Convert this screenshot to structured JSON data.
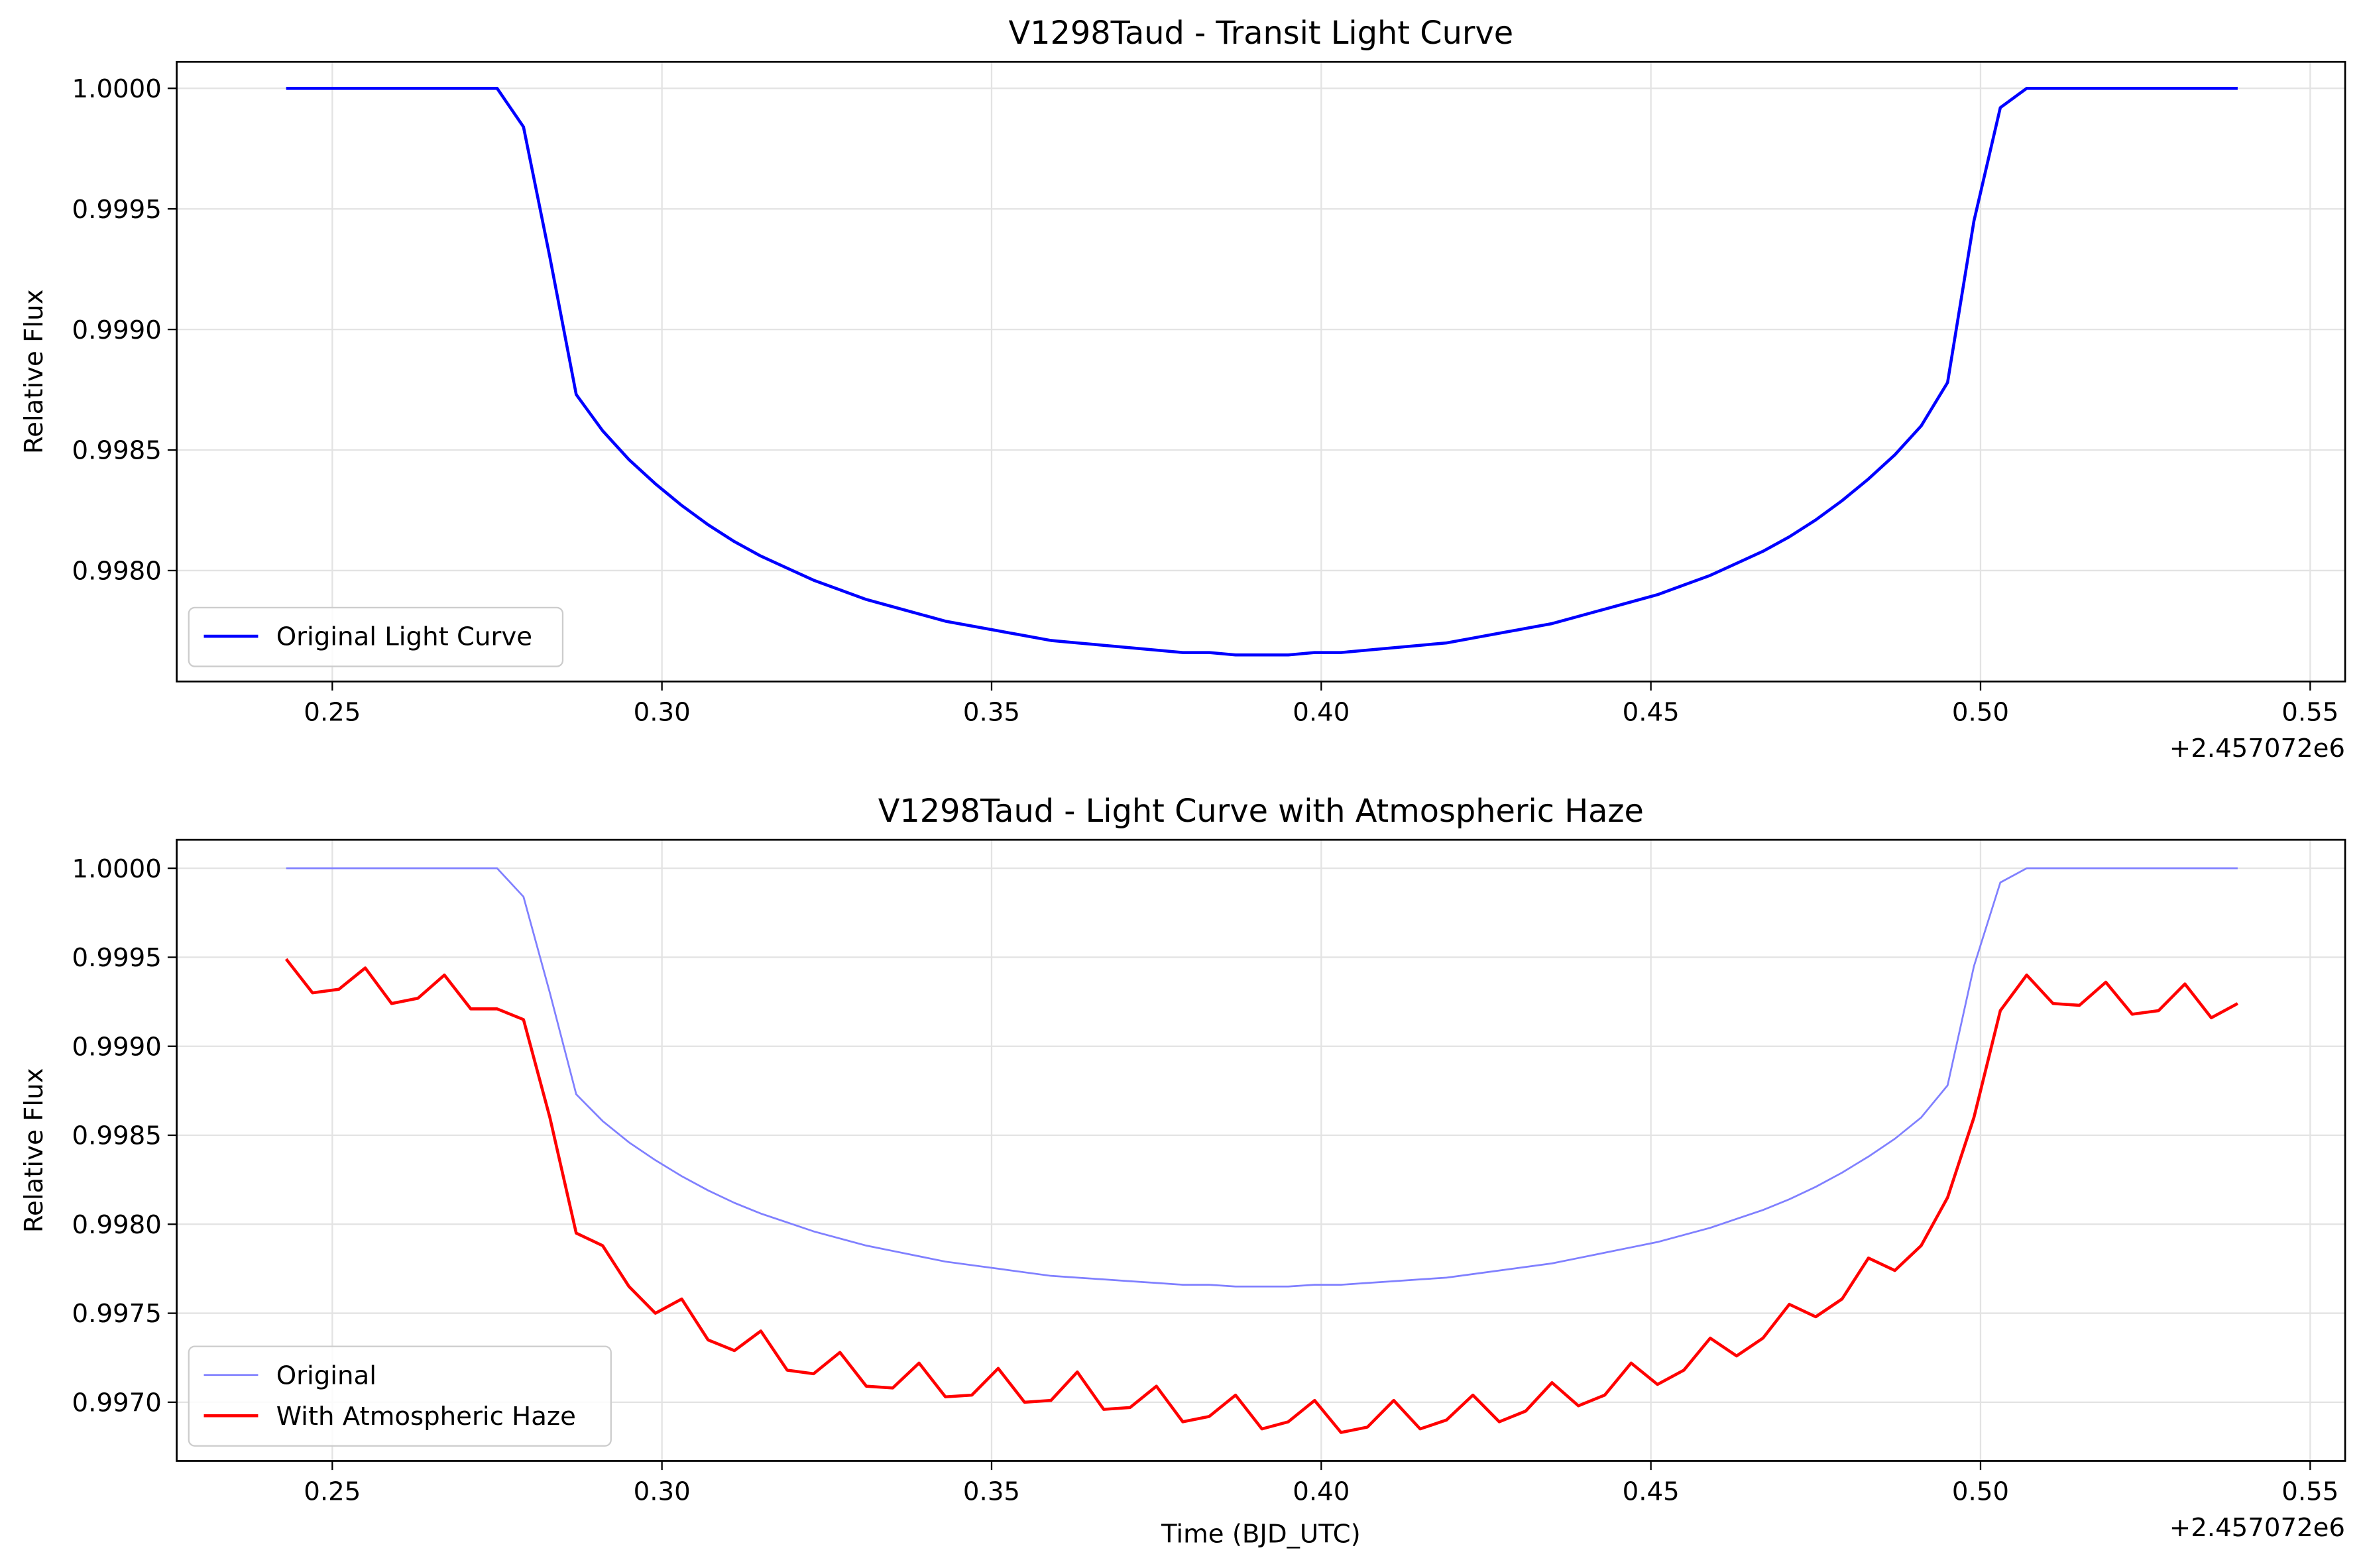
{
  "chart_data": [
    {
      "type": "line",
      "title": "V1298Taud - Transit Light Curve",
      "ylabel": "Relative Flux",
      "x_offset_label": "+2.457072e6",
      "x": [
        0.243,
        0.247,
        0.251,
        0.255,
        0.259,
        0.263,
        0.267,
        0.271,
        0.275,
        0.279,
        0.283,
        0.287,
        0.291,
        0.295,
        0.299,
        0.303,
        0.307,
        0.311,
        0.315,
        0.319,
        0.323,
        0.327,
        0.331,
        0.335,
        0.339,
        0.343,
        0.347,
        0.351,
        0.355,
        0.359,
        0.363,
        0.367,
        0.371,
        0.375,
        0.379,
        0.383,
        0.387,
        0.391,
        0.395,
        0.399,
        0.403,
        0.407,
        0.411,
        0.415,
        0.419,
        0.423,
        0.427,
        0.431,
        0.435,
        0.439,
        0.443,
        0.447,
        0.451,
        0.455,
        0.459,
        0.463,
        0.467,
        0.471,
        0.475,
        0.479,
        0.483,
        0.487,
        0.491,
        0.495,
        0.499,
        0.503,
        0.507,
        0.511,
        0.515,
        0.519,
        0.523,
        0.527,
        0.531,
        0.535,
        0.539
      ],
      "series": [
        {
          "name": "Original Light Curve",
          "color": "#0000ff",
          "values": [
            1,
            1,
            1,
            1,
            1,
            1,
            1,
            1,
            1,
            0.99984,
            0.9993,
            0.99873,
            0.99858,
            0.99846,
            0.99836,
            0.99827,
            0.99819,
            0.99812,
            0.99806,
            0.99801,
            0.99796,
            0.99792,
            0.99788,
            0.99785,
            0.99782,
            0.99779,
            0.99777,
            0.99775,
            0.99773,
            0.99771,
            0.9977,
            0.99769,
            0.99768,
            0.99767,
            0.99766,
            0.99766,
            0.99765,
            0.99765,
            0.99765,
            0.99766,
            0.99766,
            0.99767,
            0.99768,
            0.99769,
            0.9977,
            0.99772,
            0.99774,
            0.99776,
            0.99778,
            0.99781,
            0.99784,
            0.99787,
            0.9979,
            0.99794,
            0.99798,
            0.99803,
            0.99808,
            0.99814,
            0.99821,
            0.99829,
            0.99838,
            0.99848,
            0.9986,
            0.99878,
            0.99945,
            0.99992,
            1,
            1,
            1,
            1,
            1,
            1,
            1,
            1,
            1
          ]
        }
      ],
      "xlim": [
        0.2264,
        0.5553
      ],
      "ylim": [
        0.99754,
        1.00011
      ],
      "xticks": [
        0.25,
        {
          "value": 0.3,
          "label": "0.30"
        },
        0.35,
        {
          "value": 0.4,
          "label": "0.40"
        },
        0.45,
        {
          "value": 0.5,
          "label": "0.50"
        },
        0.55
      ],
      "yticks": [
        {
          "value": 1,
          "label": "1.0000"
        },
        0.9995,
        {
          "value": 0.999,
          "label": "0.9990"
        },
        0.9985,
        {
          "value": 0.998,
          "label": "0.9980"
        }
      ],
      "grid": true,
      "legend": "lower left"
    },
    {
      "type": "line",
      "title": "V1298Taud - Light Curve with Atmospheric Haze",
      "xlabel": "Time (BJD_UTC)",
      "ylabel": "Relative Flux",
      "x_offset_label": "+2.457072e6",
      "x": [
        0.243,
        0.247,
        0.251,
        0.255,
        0.259,
        0.263,
        0.267,
        0.271,
        0.275,
        0.279,
        0.283,
        0.287,
        0.291,
        0.295,
        0.299,
        0.303,
        0.307,
        0.311,
        0.315,
        0.319,
        0.323,
        0.327,
        0.331,
        0.335,
        0.339,
        0.343,
        0.347,
        0.351,
        0.355,
        0.359,
        0.363,
        0.367,
        0.371,
        0.375,
        0.379,
        0.383,
        0.387,
        0.391,
        0.395,
        0.399,
        0.403,
        0.407,
        0.411,
        0.415,
        0.419,
        0.423,
        0.427,
        0.431,
        0.435,
        0.439,
        0.443,
        0.447,
        0.451,
        0.455,
        0.459,
        0.463,
        0.467,
        0.471,
        0.475,
        0.479,
        0.483,
        0.487,
        0.491,
        0.495,
        0.499,
        0.503,
        0.507,
        0.511,
        0.515,
        0.519,
        0.523,
        0.527,
        0.531,
        0.535,
        0.539
      ],
      "series": [
        {
          "name": "Original",
          "color": "#8080ff",
          "width": 1.2,
          "values": [
            1,
            1,
            1,
            1,
            1,
            1,
            1,
            1,
            1,
            0.99984,
            0.9993,
            0.99873,
            0.99858,
            0.99846,
            0.99836,
            0.99827,
            0.99819,
            0.99812,
            0.99806,
            0.99801,
            0.99796,
            0.99792,
            0.99788,
            0.99785,
            0.99782,
            0.99779,
            0.99777,
            0.99775,
            0.99773,
            0.99771,
            0.9977,
            0.99769,
            0.99768,
            0.99767,
            0.99766,
            0.99766,
            0.99765,
            0.99765,
            0.99765,
            0.99766,
            0.99766,
            0.99767,
            0.99768,
            0.99769,
            0.9977,
            0.99772,
            0.99774,
            0.99776,
            0.99778,
            0.99781,
            0.99784,
            0.99787,
            0.9979,
            0.99794,
            0.99798,
            0.99803,
            0.99808,
            0.99814,
            0.99821,
            0.99829,
            0.99838,
            0.99848,
            0.9986,
            0.99878,
            0.99945,
            0.99992,
            1,
            1,
            1,
            1,
            1,
            1,
            1,
            1,
            1
          ]
        },
        {
          "name": "With Atmospheric Haze",
          "color": "#ff0000",
          "width": 2,
          "values": [
            0.99949,
            0.9993,
            0.99932,
            0.99944,
            0.99924,
            0.99927,
            0.9994,
            0.99921,
            0.99921,
            0.99915,
            0.9986,
            0.99795,
            0.99788,
            0.99765,
            0.9975,
            0.99758,
            0.99735,
            0.99729,
            0.9974,
            0.99718,
            0.99716,
            0.99728,
            0.99709,
            0.99708,
            0.99722,
            0.99703,
            0.99704,
            0.99719,
            0.997,
            0.99701,
            0.99717,
            0.99696,
            0.99697,
            0.99709,
            0.99689,
            0.99692,
            0.99704,
            0.99685,
            0.99689,
            0.99701,
            0.99683,
            0.99686,
            0.99701,
            0.99685,
            0.9969,
            0.99704,
            0.99689,
            0.99695,
            0.99711,
            0.99698,
            0.99704,
            0.99722,
            0.9971,
            0.99718,
            0.99736,
            0.99726,
            0.99736,
            0.99755,
            0.99748,
            0.99758,
            0.99781,
            0.99774,
            0.99788,
            0.99815,
            0.9986,
            0.9992,
            0.9994,
            0.99924,
            0.99923,
            0.99936,
            0.99918,
            0.9992,
            0.99935,
            0.99916,
            0.99924
          ]
        }
      ],
      "xlim": [
        0.2264,
        0.5553
      ],
      "ylim": [
        0.99667,
        1.00016
      ],
      "xticks": [
        0.25,
        {
          "value": 0.3,
          "label": "0.30"
        },
        0.35,
        {
          "value": 0.4,
          "label": "0.40"
        },
        0.45,
        {
          "value": 0.5,
          "label": "0.50"
        },
        0.55
      ],
      "yticks": [
        {
          "value": 1,
          "label": "1.0000"
        },
        0.9995,
        {
          "value": 0.999,
          "label": "0.9990"
        },
        0.9985,
        {
          "value": 0.998,
          "label": "0.9980"
        },
        0.9975,
        {
          "value": 0.997,
          "label": "0.9970"
        }
      ],
      "grid": true,
      "legend": "lower left"
    }
  ]
}
